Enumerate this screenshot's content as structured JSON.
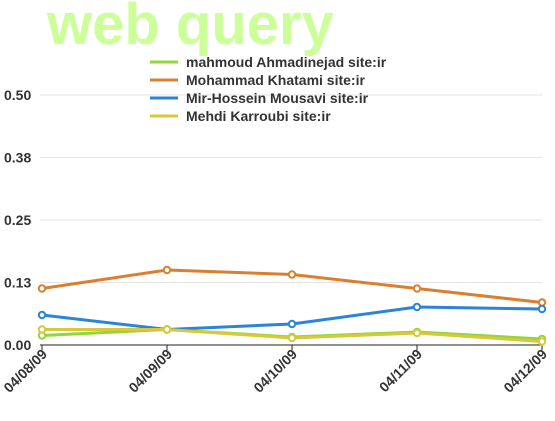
{
  "watermark": "web query",
  "chart_data": {
    "type": "line",
    "x": [
      "04/08/09",
      "04/09/09",
      "04/10/09",
      "04/11/09",
      "04/12/09"
    ],
    "yticks": [
      "0.00",
      "0.13",
      "0.25",
      "0.38",
      "0.50"
    ],
    "ylim": [
      0,
      0.5
    ],
    "grid": true,
    "legend_position": "top-center",
    "series": [
      {
        "name": "mahmoud Ahmadinejad site:ir",
        "color": "#8dd83a",
        "values": [
          0.019,
          0.031,
          0.016,
          0.026,
          0.012
        ]
      },
      {
        "name": "Mohammad Khatami site:ir",
        "color": "#d98030",
        "values": [
          0.113,
          0.15,
          0.141,
          0.113,
          0.085
        ]
      },
      {
        "name": "Mir-Hossein Mousavi site:ir",
        "color": "#2a85d8",
        "values": [
          0.06,
          0.031,
          0.042,
          0.076,
          0.072
        ]
      },
      {
        "name": "Mehdi Karroubi site:ir",
        "color": "#d8c83a",
        "values": [
          0.031,
          0.031,
          0.014,
          0.024,
          0.007
        ]
      }
    ]
  }
}
